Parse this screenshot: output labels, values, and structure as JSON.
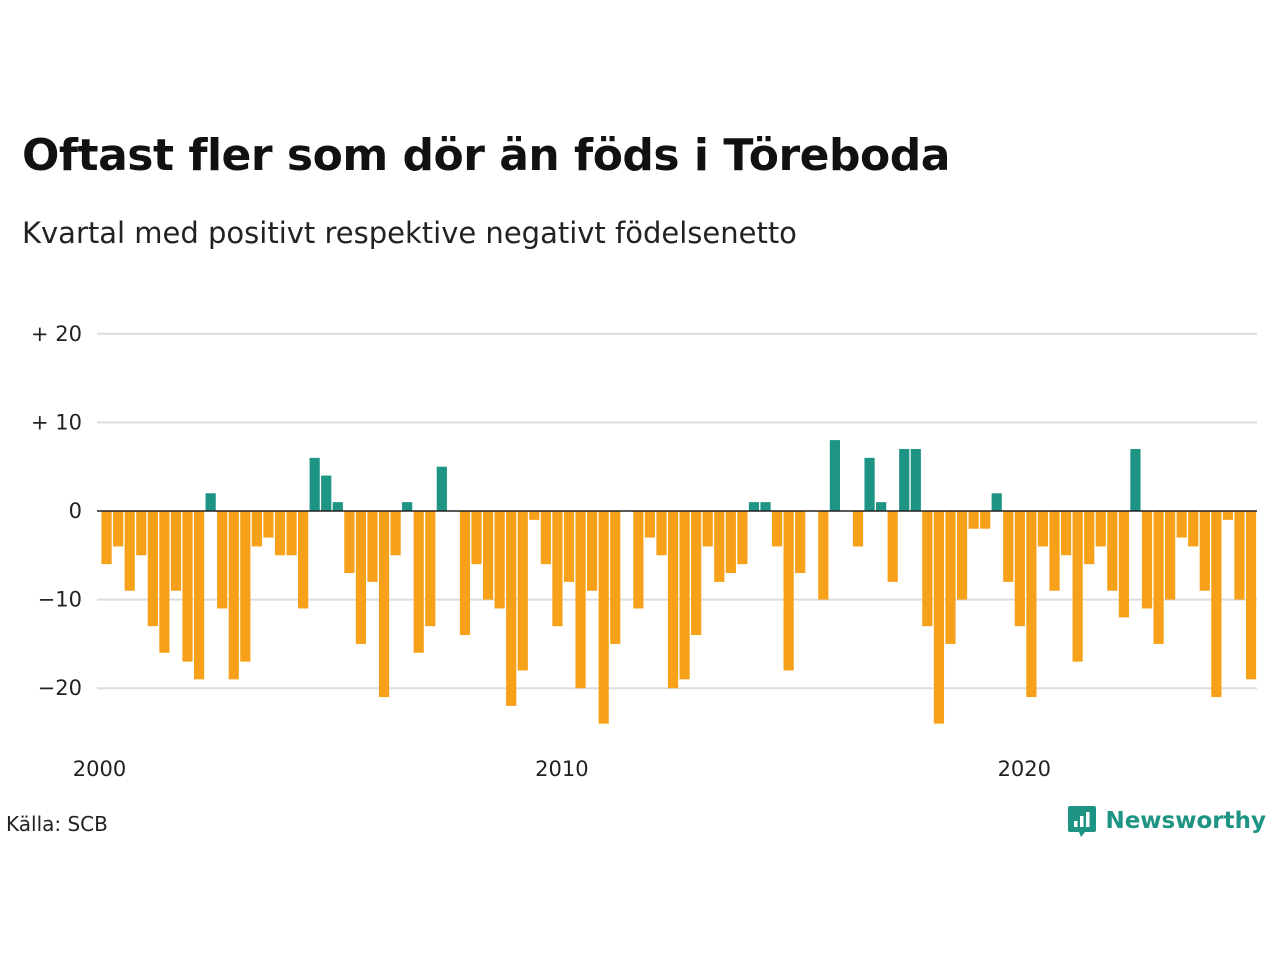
{
  "title": "Oftast fler som dör än föds i Töreboda",
  "subtitle": "Kvartal med positivt respektive negativt födelsenetto",
  "source": "Källa: SCB",
  "brand": {
    "name": "Newsworthy",
    "icon": "newsworthy-logo-icon"
  },
  "colors": {
    "positive": "#1e9484",
    "negative": "#f7a11a",
    "grid": "#dddddd",
    "zero": "#222222"
  },
  "chart_data": {
    "type": "bar",
    "xlabel": "",
    "ylabel": "",
    "ylim": [
      -25,
      22
    ],
    "grid": true,
    "y_ticks": [
      {
        "value": 20,
        "label": "+ 20"
      },
      {
        "value": 10,
        "label": "+ 10"
      },
      {
        "value": 0,
        "label": "0"
      },
      {
        "value": -10,
        "label": "−10"
      },
      {
        "value": -20,
        "label": "−20"
      }
    ],
    "x_ticks": [
      {
        "value": "2000",
        "label": "2000"
      },
      {
        "value": "2010",
        "label": "2010"
      },
      {
        "value": "2020",
        "label": "2020"
      }
    ],
    "start_year": 2000,
    "periods_per_year": 4,
    "values": [
      -6,
      -4,
      -9,
      -5,
      -13,
      -16,
      -9,
      -17,
      -19,
      2,
      -11,
      -19,
      -17,
      -4,
      -3,
      -5,
      -5,
      -11,
      6,
      4,
      1,
      -7,
      -15,
      -8,
      -21,
      -5,
      1,
      -16,
      -13,
      5,
      0,
      -14,
      -6,
      -10,
      -11,
      -22,
      -18,
      -1,
      -6,
      -13,
      -8,
      -20,
      -9,
      -24,
      -15,
      0,
      -11,
      -3,
      -5,
      -20,
      -19,
      -14,
      -4,
      -8,
      -7,
      -6,
      1,
      1,
      -4,
      -18,
      -7,
      0,
      -10,
      8,
      0,
      -4,
      6,
      1,
      -8,
      7,
      7,
      -13,
      -24,
      -15,
      -10,
      -2,
      -2,
      2,
      -8,
      -13,
      -21,
      -4,
      -9,
      -5,
      -17,
      -6,
      -4,
      -9,
      -12,
      7,
      -11,
      -15,
      -10,
      -3,
      -4,
      -9,
      -21,
      -1,
      -10,
      -19
    ]
  }
}
